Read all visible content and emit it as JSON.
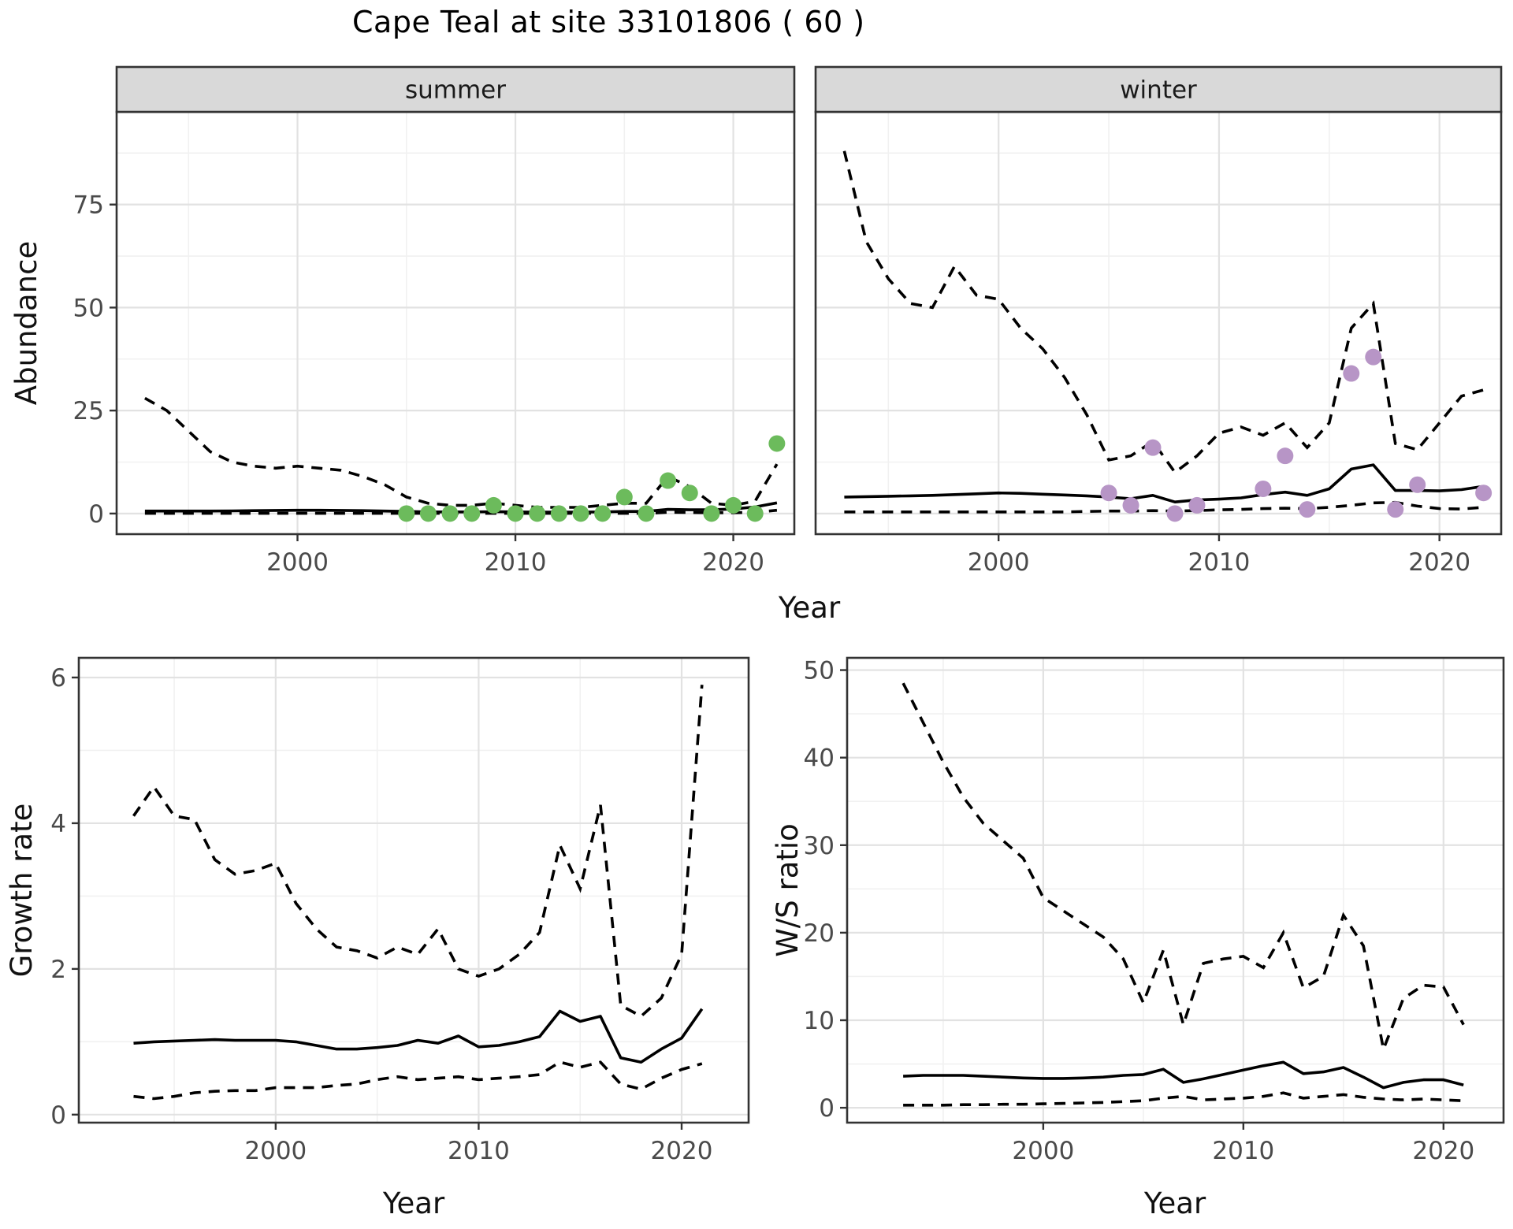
{
  "title": "Cape Teal at site 33101806 ( 60 )",
  "colors": {
    "summer_point": "#6CBB5C",
    "winter_point": "#B795C6",
    "line": "#000000",
    "strip_fill": "#D9D9D9",
    "panel_border": "#333333",
    "grid_major": "#E2E2E2",
    "grid_minor": "#F1F1F1",
    "axis_text": "#4A4A4A",
    "panel_bg": "#FFFFFF"
  },
  "line_styles": {
    "mean": "solid",
    "confidence_interval": "dashed",
    "observed": "points"
  },
  "chart_data": [
    {
      "id": "abundance-summer",
      "type": "line",
      "facet": "summer",
      "ylabel": "Abundance",
      "xlabel": "Year",
      "xlim": [
        1991.7,
        2022.8
      ],
      "ylim": [
        -5,
        97.5
      ],
      "xticks": [
        2000,
        2010,
        2020
      ],
      "yticks": [
        0,
        25,
        50,
        75
      ],
      "grid": "major+minor",
      "years": [
        1993,
        1994,
        1995,
        1996,
        1997,
        1998,
        1999,
        2000,
        2001,
        2002,
        2003,
        2004,
        2005,
        2006,
        2007,
        2008,
        2009,
        2010,
        2011,
        2012,
        2013,
        2014,
        2015,
        2016,
        2017,
        2018,
        2019,
        2020,
        2021,
        2022
      ],
      "ci_upper": [
        28,
        25,
        20,
        15,
        12.5,
        11.5,
        11,
        11.5,
        11,
        10.5,
        9,
        7,
        4,
        2.5,
        2,
        2,
        2.5,
        2,
        1.5,
        1.5,
        1.5,
        2,
        2.5,
        2.5,
        9,
        6.5,
        2.5,
        2,
        3,
        12
      ],
      "mean": [
        0.6,
        0.6,
        0.6,
        0.6,
        0.65,
        0.7,
        0.75,
        0.8,
        0.8,
        0.75,
        0.7,
        0.6,
        0.5,
        0.4,
        0.4,
        0.4,
        0.45,
        0.4,
        0.35,
        0.35,
        0.35,
        0.4,
        0.5,
        0.5,
        1.0,
        0.9,
        0.9,
        1.1,
        1.6,
        2.6
      ],
      "ci_lower": [
        0.05,
        0.05,
        0.05,
        0.05,
        0.05,
        0.05,
        0.05,
        0.05,
        0.05,
        0.05,
        0.05,
        0.05,
        0.05,
        0.05,
        0.05,
        0.05,
        0.05,
        0.05,
        0.05,
        0.05,
        0.05,
        0.05,
        0.05,
        0.05,
        0.3,
        0.25,
        0.2,
        0.2,
        0.3,
        0.8
      ],
      "obs": {
        "years": [
          2005,
          2006,
          2007,
          2008,
          2009,
          2010,
          2011,
          2012,
          2013,
          2014,
          2015,
          2016,
          2017,
          2018,
          2019,
          2020,
          2021,
          2022
        ],
        "values": [
          0,
          0,
          0,
          0,
          2,
          0,
          0,
          0,
          0,
          0,
          4,
          0,
          8,
          5,
          0,
          2,
          0,
          17
        ],
        "color": "#6CBB5C"
      }
    },
    {
      "id": "abundance-winter",
      "type": "line",
      "facet": "winter",
      "ylabel": "Abundance",
      "xlabel": "Year",
      "xlim": [
        1991.7,
        2022.8
      ],
      "ylim": [
        -5,
        97.5
      ],
      "xticks": [
        2000,
        2010,
        2020
      ],
      "yticks": [
        0,
        25,
        50,
        75
      ],
      "grid": "major+minor",
      "years": [
        1993,
        1994,
        1995,
        1996,
        1997,
        1998,
        1999,
        2000,
        2001,
        2002,
        2003,
        2004,
        2005,
        2006,
        2007,
        2008,
        2009,
        2010,
        2011,
        2012,
        2013,
        2014,
        2015,
        2016,
        2017,
        2018,
        2019,
        2020,
        2021,
        2022
      ],
      "ci_upper": [
        88,
        66,
        57,
        51,
        50,
        60,
        53,
        52,
        45,
        40,
        33,
        24,
        13,
        14,
        17.5,
        10,
        14,
        19.5,
        21,
        19,
        22,
        16,
        22,
        45,
        51,
        17,
        15.5,
        22,
        28.5,
        30
      ],
      "mean": [
        4.0,
        4.1,
        4.2,
        4.3,
        4.4,
        4.6,
        4.8,
        5.0,
        4.9,
        4.7,
        4.5,
        4.3,
        4.0,
        3.6,
        4.4,
        2.8,
        3.3,
        3.5,
        3.8,
        4.6,
        5.2,
        4.4,
        6.0,
        10.8,
        11.8,
        5.6,
        5.6,
        5.5,
        5.8,
        6.6
      ],
      "ci_lower": [
        0.4,
        0.4,
        0.4,
        0.4,
        0.4,
        0.4,
        0.4,
        0.4,
        0.4,
        0.4,
        0.4,
        0.5,
        0.6,
        0.6,
        0.7,
        0.6,
        0.7,
        0.9,
        1.0,
        1.2,
        1.3,
        1.2,
        1.5,
        2.0,
        2.6,
        2.7,
        1.8,
        1.2,
        1.1,
        1.5
      ],
      "obs": {
        "years": [
          2005,
          2006,
          2007,
          2008,
          2009,
          2012,
          2013,
          2014,
          2016,
          2017,
          2018,
          2019,
          2022
        ],
        "values": [
          5,
          2,
          16,
          0,
          2,
          6,
          14,
          1,
          34,
          38,
          1,
          7,
          5
        ],
        "color": "#B795C6"
      }
    },
    {
      "id": "growth-rate",
      "type": "line",
      "facet": null,
      "ylabel": "Growth rate",
      "xlabel": "Year",
      "xlim": [
        1990.3,
        2023.3
      ],
      "ylim": [
        -0.11,
        6.27
      ],
      "xticks": [
        2000,
        2010,
        2020
      ],
      "yticks": [
        0,
        2,
        4,
        6
      ],
      "grid": "major+minor",
      "years": [
        1993,
        1994,
        1995,
        1996,
        1997,
        1998,
        1999,
        2000,
        2001,
        2002,
        2003,
        2004,
        2005,
        2006,
        2007,
        2008,
        2009,
        2010,
        2011,
        2012,
        2013,
        2014,
        2015,
        2016,
        2017,
        2018,
        2019,
        2020,
        2021
      ],
      "ci_upper": [
        4.1,
        4.5,
        4.1,
        4.05,
        3.5,
        3.3,
        3.35,
        3.45,
        2.9,
        2.55,
        2.3,
        2.25,
        2.15,
        2.3,
        2.2,
        2.55,
        2.0,
        1.9,
        2.0,
        2.2,
        2.5,
        3.7,
        3.1,
        4.25,
        1.5,
        1.35,
        1.6,
        2.2,
        5.9
      ],
      "mean": [
        0.98,
        1.0,
        1.01,
        1.02,
        1.03,
        1.02,
        1.02,
        1.02,
        1.0,
        0.95,
        0.9,
        0.9,
        0.92,
        0.95,
        1.02,
        0.98,
        1.08,
        0.93,
        0.95,
        1.0,
        1.07,
        1.42,
        1.28,
        1.35,
        0.78,
        0.72,
        0.9,
        1.05,
        1.45
      ],
      "ci_lower": [
        0.25,
        0.22,
        0.25,
        0.3,
        0.32,
        0.33,
        0.33,
        0.37,
        0.37,
        0.37,
        0.4,
        0.42,
        0.48,
        0.52,
        0.48,
        0.5,
        0.52,
        0.48,
        0.5,
        0.52,
        0.55,
        0.72,
        0.65,
        0.72,
        0.42,
        0.35,
        0.5,
        0.62,
        0.7
      ],
      "obs": null
    },
    {
      "id": "ws-ratio",
      "type": "line",
      "facet": null,
      "ylabel": "W/S ratio",
      "xlabel": "Year",
      "xlim": [
        1990.2,
        2023.0
      ],
      "ylim": [
        -1.7,
        51.4
      ],
      "xticks": [
        2000,
        2010,
        2020
      ],
      "yticks": [
        0,
        10,
        20,
        30,
        40,
        50
      ],
      "grid": "major+minor",
      "years": [
        1993,
        1994,
        1995,
        1996,
        1997,
        1998,
        1999,
        2000,
        2001,
        2002,
        2003,
        2004,
        2005,
        2006,
        2007,
        2008,
        2009,
        2010,
        2011,
        2012,
        2013,
        2014,
        2015,
        2016,
        2017,
        2018,
        2019,
        2020,
        2021
      ],
      "ci_upper": [
        48.5,
        44,
        39.5,
        35.5,
        32.5,
        30.5,
        28.5,
        24,
        22.5,
        21,
        19.5,
        17,
        12,
        18,
        9.5,
        16.5,
        17,
        17.3,
        16,
        20,
        13.7,
        15,
        22,
        18.5,
        6.7,
        12.5,
        14,
        13.8,
        9.5
      ],
      "mean": [
        3.6,
        3.7,
        3.7,
        3.7,
        3.6,
        3.5,
        3.4,
        3.35,
        3.35,
        3.4,
        3.5,
        3.7,
        3.8,
        4.4,
        2.9,
        3.3,
        3.8,
        4.3,
        4.8,
        5.2,
        3.9,
        4.1,
        4.6,
        3.5,
        2.3,
        2.9,
        3.2,
        3.2,
        2.6
      ],
      "ci_lower": [
        0.3,
        0.3,
        0.3,
        0.35,
        0.35,
        0.4,
        0.4,
        0.45,
        0.5,
        0.55,
        0.6,
        0.7,
        0.8,
        1.1,
        1.3,
        0.9,
        1.0,
        1.1,
        1.3,
        1.7,
        1.1,
        1.3,
        1.5,
        1.2,
        1.0,
        0.9,
        1.0,
        0.9,
        0.8
      ],
      "obs": null
    }
  ]
}
